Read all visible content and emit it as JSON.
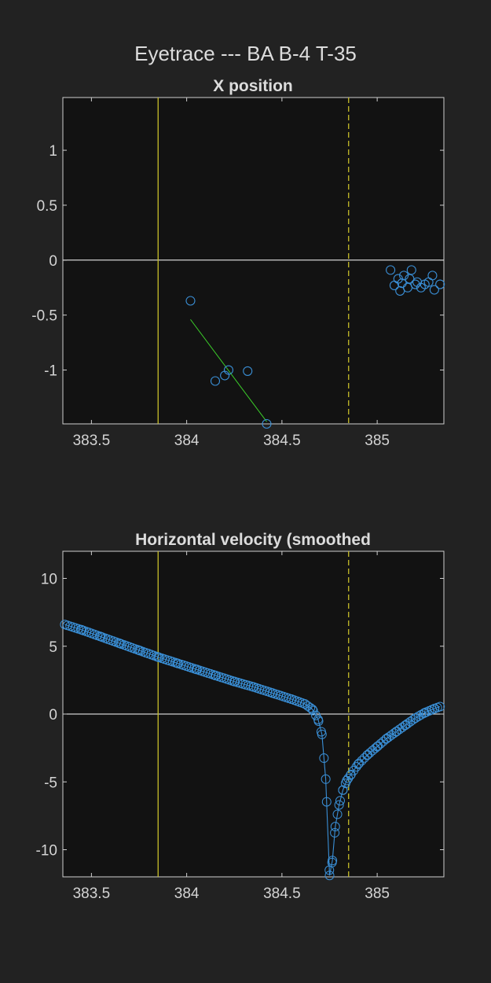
{
  "figure_title": "Eyetrace --- BA B-4 T-35",
  "colors": {
    "background": "#222222",
    "axes_background": "#121212",
    "axes_edge": "#cfcfcf",
    "zero_line": "#ffffff",
    "marker_line": "#c8bf2a",
    "marker_blue": "#3a8fd6",
    "fit_line": "#3ccf2a"
  },
  "chart_data": [
    {
      "type": "scatter",
      "title": "X position",
      "xlabel": "",
      "ylabel": "",
      "xlim": [
        383.35,
        385.35
      ],
      "ylim": [
        -1.49,
        1.48
      ],
      "xticks": [
        "383.5",
        "384",
        "384.5",
        "385"
      ],
      "xtick_values": [
        383.5,
        384,
        384.5,
        385
      ],
      "yticks": [
        "1",
        "0.5",
        "0",
        "-0.5",
        "-1"
      ],
      "ytick_values": [
        1,
        0.5,
        0,
        -0.5,
        -1
      ],
      "grid": false,
      "vlines": [
        {
          "x": 383.85,
          "style": "solid"
        },
        {
          "x": 384.85,
          "style": "dashed"
        }
      ],
      "hline": 0,
      "points": [
        {
          "x": 384.02,
          "y": -0.37
        },
        {
          "x": 384.15,
          "y": -1.1
        },
        {
          "x": 384.2,
          "y": -1.05
        },
        {
          "x": 384.22,
          "y": -1.0
        },
        {
          "x": 384.32,
          "y": -1.01
        },
        {
          "x": 384.42,
          "y": -1.49
        },
        {
          "x": 385.07,
          "y": -0.09
        },
        {
          "x": 385.09,
          "y": -0.23
        },
        {
          "x": 385.11,
          "y": -0.17
        },
        {
          "x": 385.12,
          "y": -0.28
        },
        {
          "x": 385.13,
          "y": -0.21
        },
        {
          "x": 385.14,
          "y": -0.14
        },
        {
          "x": 385.16,
          "y": -0.25
        },
        {
          "x": 385.17,
          "y": -0.17
        },
        {
          "x": 385.18,
          "y": -0.09
        },
        {
          "x": 385.2,
          "y": -0.22
        },
        {
          "x": 385.21,
          "y": -0.2
        },
        {
          "x": 385.23,
          "y": -0.25
        },
        {
          "x": 385.25,
          "y": -0.22
        },
        {
          "x": 385.27,
          "y": -0.2
        },
        {
          "x": 385.29,
          "y": -0.14
        },
        {
          "x": 385.3,
          "y": -0.27
        },
        {
          "x": 385.33,
          "y": -0.22
        }
      ],
      "fit_line": [
        {
          "x": 384.02,
          "y": -0.54
        },
        {
          "x": 384.42,
          "y": -1.47
        }
      ]
    },
    {
      "type": "line",
      "title": "Horizontal velocity (smoothed",
      "xlabel": "",
      "ylabel": "",
      "xlim": [
        383.35,
        385.35
      ],
      "ylim": [
        -12,
        12
      ],
      "xticks": [
        "383.5",
        "384",
        "384.5",
        "385"
      ],
      "xtick_values": [
        383.5,
        384,
        384.5,
        385
      ],
      "yticks": [
        "10",
        "5",
        "0",
        "-5",
        "-10"
      ],
      "ytick_values": [
        10,
        5,
        0,
        -5,
        -10
      ],
      "grid": false,
      "vlines": [
        {
          "x": 383.85,
          "style": "solid"
        },
        {
          "x": 384.85,
          "style": "dashed"
        }
      ],
      "hline": 0,
      "series": [
        {
          "markers": "circle",
          "x": [
            383.36,
            383.45,
            383.55,
            383.65,
            383.75,
            383.85,
            383.95,
            384.05,
            384.15,
            384.25,
            384.35,
            384.45,
            384.55,
            384.62,
            384.66,
            384.69,
            384.71,
            384.73,
            384.75,
            384.765,
            384.78,
            384.8,
            384.82,
            384.84,
            384.86,
            384.9,
            384.95,
            385.0,
            385.05,
            385.1,
            385.15,
            385.2,
            385.25,
            385.3,
            385.33
          ],
          "y": [
            6.6,
            6.2,
            5.7,
            5.2,
            4.7,
            4.2,
            3.75,
            3.3,
            2.85,
            2.4,
            2.0,
            1.55,
            1.1,
            0.75,
            0.35,
            -0.4,
            -1.5,
            -4.8,
            -11.9,
            -10.8,
            -8.3,
            -6.7,
            -5.6,
            -4.9,
            -4.5,
            -3.7,
            -3.0,
            -2.4,
            -1.8,
            -1.3,
            -0.8,
            -0.3,
            0.1,
            0.4,
            0.55
          ]
        }
      ]
    }
  ]
}
